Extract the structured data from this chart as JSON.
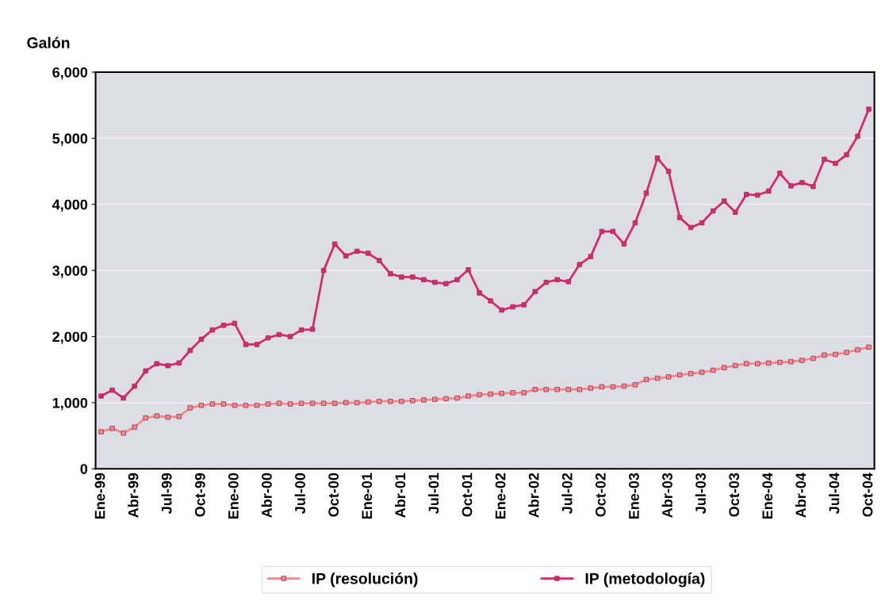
{
  "chart_data": {
    "type": "line",
    "ylabel": "Galón",
    "categories": [
      "Ene-99",
      null,
      null,
      "Abr-99",
      null,
      null,
      "Jul-99",
      null,
      null,
      "Oct-99",
      null,
      null,
      "Ene-00",
      null,
      null,
      "Abr-00",
      null,
      null,
      "Jul-00",
      null,
      null,
      "Oct-00",
      null,
      null,
      "Ene-01",
      null,
      null,
      "Abr-01",
      null,
      null,
      "Jul-01",
      null,
      null,
      "Oct-01",
      null,
      null,
      "Ene-02",
      null,
      null,
      "Abr-02",
      null,
      null,
      "Jul-02",
      null,
      null,
      "Oct-02",
      null,
      null,
      "Ene-03",
      null,
      null,
      "Abr-03",
      null,
      null,
      "Jul-03",
      null,
      null,
      "Oct-03",
      null,
      null,
      "Ene-04",
      null,
      null,
      "Abr-04",
      null,
      null,
      "Jul-04",
      null,
      null,
      "Oct-04"
    ],
    "series": [
      {
        "name": "IP (resolución)",
        "color": "#f08a8a",
        "values": [
          560,
          610,
          540,
          630,
          770,
          800,
          780,
          790,
          920,
          960,
          980,
          980,
          960,
          960,
          960,
          980,
          990,
          980,
          990,
          990,
          990,
          990,
          1000,
          1000,
          1010,
          1020,
          1020,
          1020,
          1030,
          1040,
          1050,
          1060,
          1070,
          1100,
          1120,
          1130,
          1140,
          1150,
          1150,
          1200,
          1200,
          1200,
          1200,
          1200,
          1220,
          1240,
          1240,
          1250,
          1270,
          1350,
          1370,
          1390,
          1420,
          1440,
          1460,
          1490,
          1530,
          1560,
          1590,
          1590,
          1600,
          1610,
          1620,
          1640,
          1670,
          1720,
          1730,
          1760,
          1800,
          1840
        ]
      },
      {
        "name": "IP (metodología)",
        "color": "#d62a6e",
        "values": [
          1100,
          1190,
          1070,
          1250,
          1480,
          1590,
          1560,
          1600,
          1790,
          1960,
          2100,
          2170,
          2200,
          1880,
          1880,
          1980,
          2030,
          2000,
          2100,
          2110,
          3000,
          3400,
          3220,
          3290,
          3260,
          3150,
          2950,
          2900,
          2900,
          2860,
          2820,
          2800,
          2860,
          3010,
          2660,
          2540,
          2400,
          2450,
          2480,
          2680,
          2820,
          2860,
          2830,
          3090,
          3210,
          3590,
          3590,
          3400,
          3720,
          4170,
          4700,
          4500,
          3800,
          3650,
          3720,
          3900,
          4050,
          3880,
          4150,
          4140,
          4200,
          4470,
          4280,
          4330,
          4270,
          4680,
          4620,
          4750,
          5030,
          5440
        ]
      }
    ],
    "ylim": [
      0,
      6000
    ],
    "yticks": [
      {
        "value": 0,
        "label": "0"
      },
      {
        "value": 1000,
        "label": "1,000"
      },
      {
        "value": 2000,
        "label": "2,000"
      },
      {
        "value": 3000,
        "label": "3,000"
      },
      {
        "value": 4000,
        "label": "4,000"
      },
      {
        "value": 5000,
        "label": "5,000"
      },
      {
        "value": 6000,
        "label": "6,000"
      }
    ],
    "grid": "y",
    "legend": "bottom",
    "marker": "square",
    "line_style": "solid"
  }
}
